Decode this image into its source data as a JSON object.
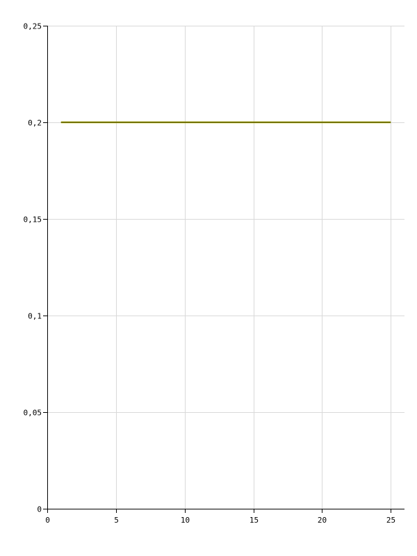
{
  "chart_data": {
    "type": "line",
    "title": "",
    "xlabel": "",
    "ylabel": "",
    "xlim": [
      0,
      26
    ],
    "ylim": [
      0,
      0.25
    ],
    "x_ticks": [
      0,
      5,
      10,
      15,
      20,
      25
    ],
    "x_tick_labels": [
      "0",
      "5",
      "10",
      "15",
      "20",
      "25"
    ],
    "y_ticks": [
      0,
      0.05,
      0.1,
      0.15,
      0.2,
      0.25
    ],
    "y_tick_labels": [
      "0",
      "0,05",
      "0,1",
      "0,15",
      "0,2",
      "0,25"
    ],
    "grid": true,
    "legend": "none",
    "colors": {
      "grid": "#d9d9d9",
      "axis": "#000000",
      "series_primary": "#3f3f00",
      "series_secondary": "#c8c800"
    },
    "series": [
      {
        "x": [
          1,
          25
        ],
        "y": [
          0.2,
          0.2
        ]
      }
    ]
  }
}
